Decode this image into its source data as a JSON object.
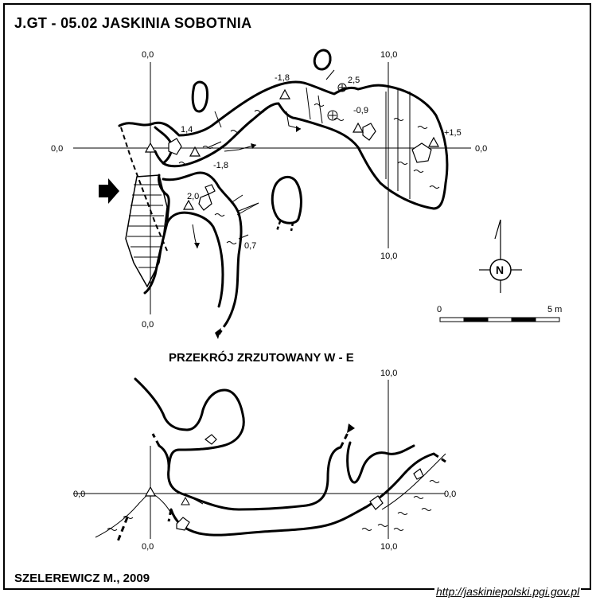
{
  "title": "J.GT - 05.02  JASKINIA SOBOTNIA",
  "section_title": "PRZEKRÓJ ZRZUTOWANY W - E",
  "author": "SZELEREWICZ M., 2009",
  "url": "http://jaskiniepolski.pgi.gov.pl",
  "plan": {
    "grid_labels": {
      "top_left": "0,0",
      "top_right": "10,0",
      "left": "0,0",
      "right": "0,0",
      "bottom_left": "0,0",
      "bottom_right": "10,0"
    },
    "heights": [
      "1,4",
      "-1,8",
      "-1,8",
      "2,5",
      "-0,9",
      "+1,5",
      "2,0",
      "0,7"
    ]
  },
  "north_label": "N",
  "scale": {
    "start": "0",
    "end": "5 m"
  },
  "section": {
    "grid_labels": {
      "top_right": "10,0",
      "left": "0,0",
      "right": "0,0",
      "bottom_left": "0,0",
      "bottom_right": "10,0"
    }
  }
}
